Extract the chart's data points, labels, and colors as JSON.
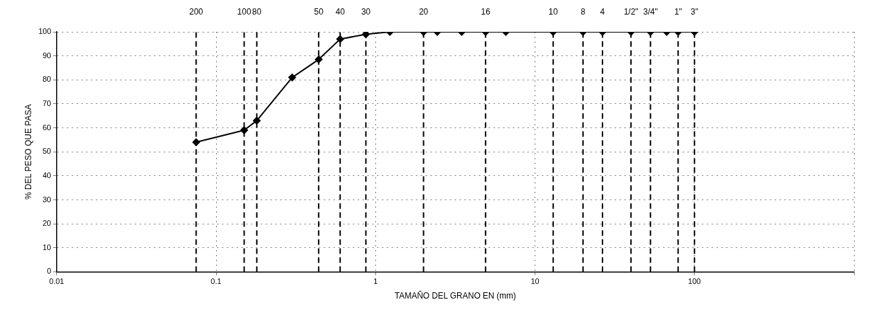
{
  "chart_data": {
    "type": "line",
    "xlabel": "TAMAÑO DEL GRANO EN (mm)",
    "ylabel": "% DEL PESO QUE PASA",
    "x": [
      0.075,
      0.15,
      0.18,
      0.3,
      0.44,
      0.6,
      0.87,
      1.23,
      2.0,
      2.44,
      3.47,
      4.9,
      6.56,
      13,
      20,
      26.5,
      40,
      53,
      67,
      79,
      100
    ],
    "series": [
      {
        "color": "#000000",
        "values": [
          54,
          59,
          63,
          81,
          88.5,
          97,
          99,
          100,
          100,
          100,
          100,
          100,
          100,
          100,
          100,
          100,
          100,
          100,
          100,
          100,
          100
        ]
      }
    ],
    "log": "x",
    "xlim": [
      0.01,
      1000
    ],
    "xticks": [
      0.01,
      0.1,
      1,
      10,
      100,
      {
        "value": 1000,
        "label": null
      }
    ],
    "ylim": [
      0,
      100
    ],
    "yticks": [
      0,
      10,
      20,
      30,
      40,
      50,
      60,
      70,
      80,
      90,
      100
    ],
    "grid": true,
    "legend": false,
    "marker": "diamond",
    "line_style": "solid",
    "annotations": [
      "200",
      "100",
      "80",
      "50",
      "40",
      "30",
      "20",
      "16",
      "10",
      "8",
      "4",
      "1/2\"",
      "3/4\"",
      "1\"",
      "3\""
    ],
    "ref_lines": [
      {
        "axis": "x",
        "value": 0.075,
        "line_style": "dashed",
        "color": "#000000"
      },
      {
        "axis": "x",
        "value": 0.15,
        "line_style": "dashed",
        "color": "#000000"
      },
      {
        "axis": "x",
        "value": 0.18,
        "line_style": "dashed",
        "color": "#000000"
      },
      {
        "axis": "x",
        "value": 0.44,
        "line_style": "dashed",
        "color": "#000000"
      },
      {
        "axis": "x",
        "value": 0.6,
        "line_style": "dashed",
        "color": "#000000"
      },
      {
        "axis": "x",
        "value": 0.87,
        "line_style": "dashed",
        "color": "#000000"
      },
      {
        "axis": "x",
        "value": 2.0,
        "line_style": "dashed",
        "color": "#000000"
      },
      {
        "axis": "x",
        "value": 4.9,
        "line_style": "dashed",
        "color": "#000000"
      },
      {
        "axis": "x",
        "value": 13,
        "line_style": "dashed",
        "color": "#000000"
      },
      {
        "axis": "x",
        "value": 20,
        "line_style": "dashed",
        "color": "#000000"
      },
      {
        "axis": "x",
        "value": 26.5,
        "line_style": "dashed",
        "color": "#000000"
      },
      {
        "axis": "x",
        "value": 40,
        "line_style": "dashed",
        "color": "#000000"
      },
      {
        "axis": "x",
        "value": 53,
        "line_style": "dashed",
        "color": "#000000"
      },
      {
        "axis": "x",
        "value": 79,
        "line_style": "dashed",
        "color": "#000000"
      },
      {
        "axis": "x",
        "value": 100,
        "line_style": "dashed",
        "color": "#000000"
      }
    ]
  }
}
